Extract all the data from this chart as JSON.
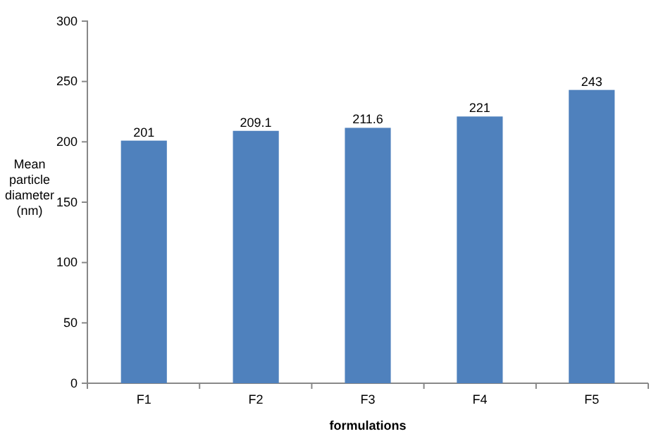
{
  "chart_data": {
    "type": "bar",
    "xlabel": "formulations",
    "ylabel": "Mean particle diameter (nm)",
    "categories": [
      "F1",
      "F2",
      "F3",
      "F4",
      "F5"
    ],
    "values": [
      201,
      209.1,
      211.6,
      221,
      243
    ],
    "color": "#4f81bd",
    "ylim": [
      0,
      300
    ],
    "yticks": [
      0,
      50,
      100,
      150,
      200,
      250,
      300
    ],
    "data_labels": true
  }
}
